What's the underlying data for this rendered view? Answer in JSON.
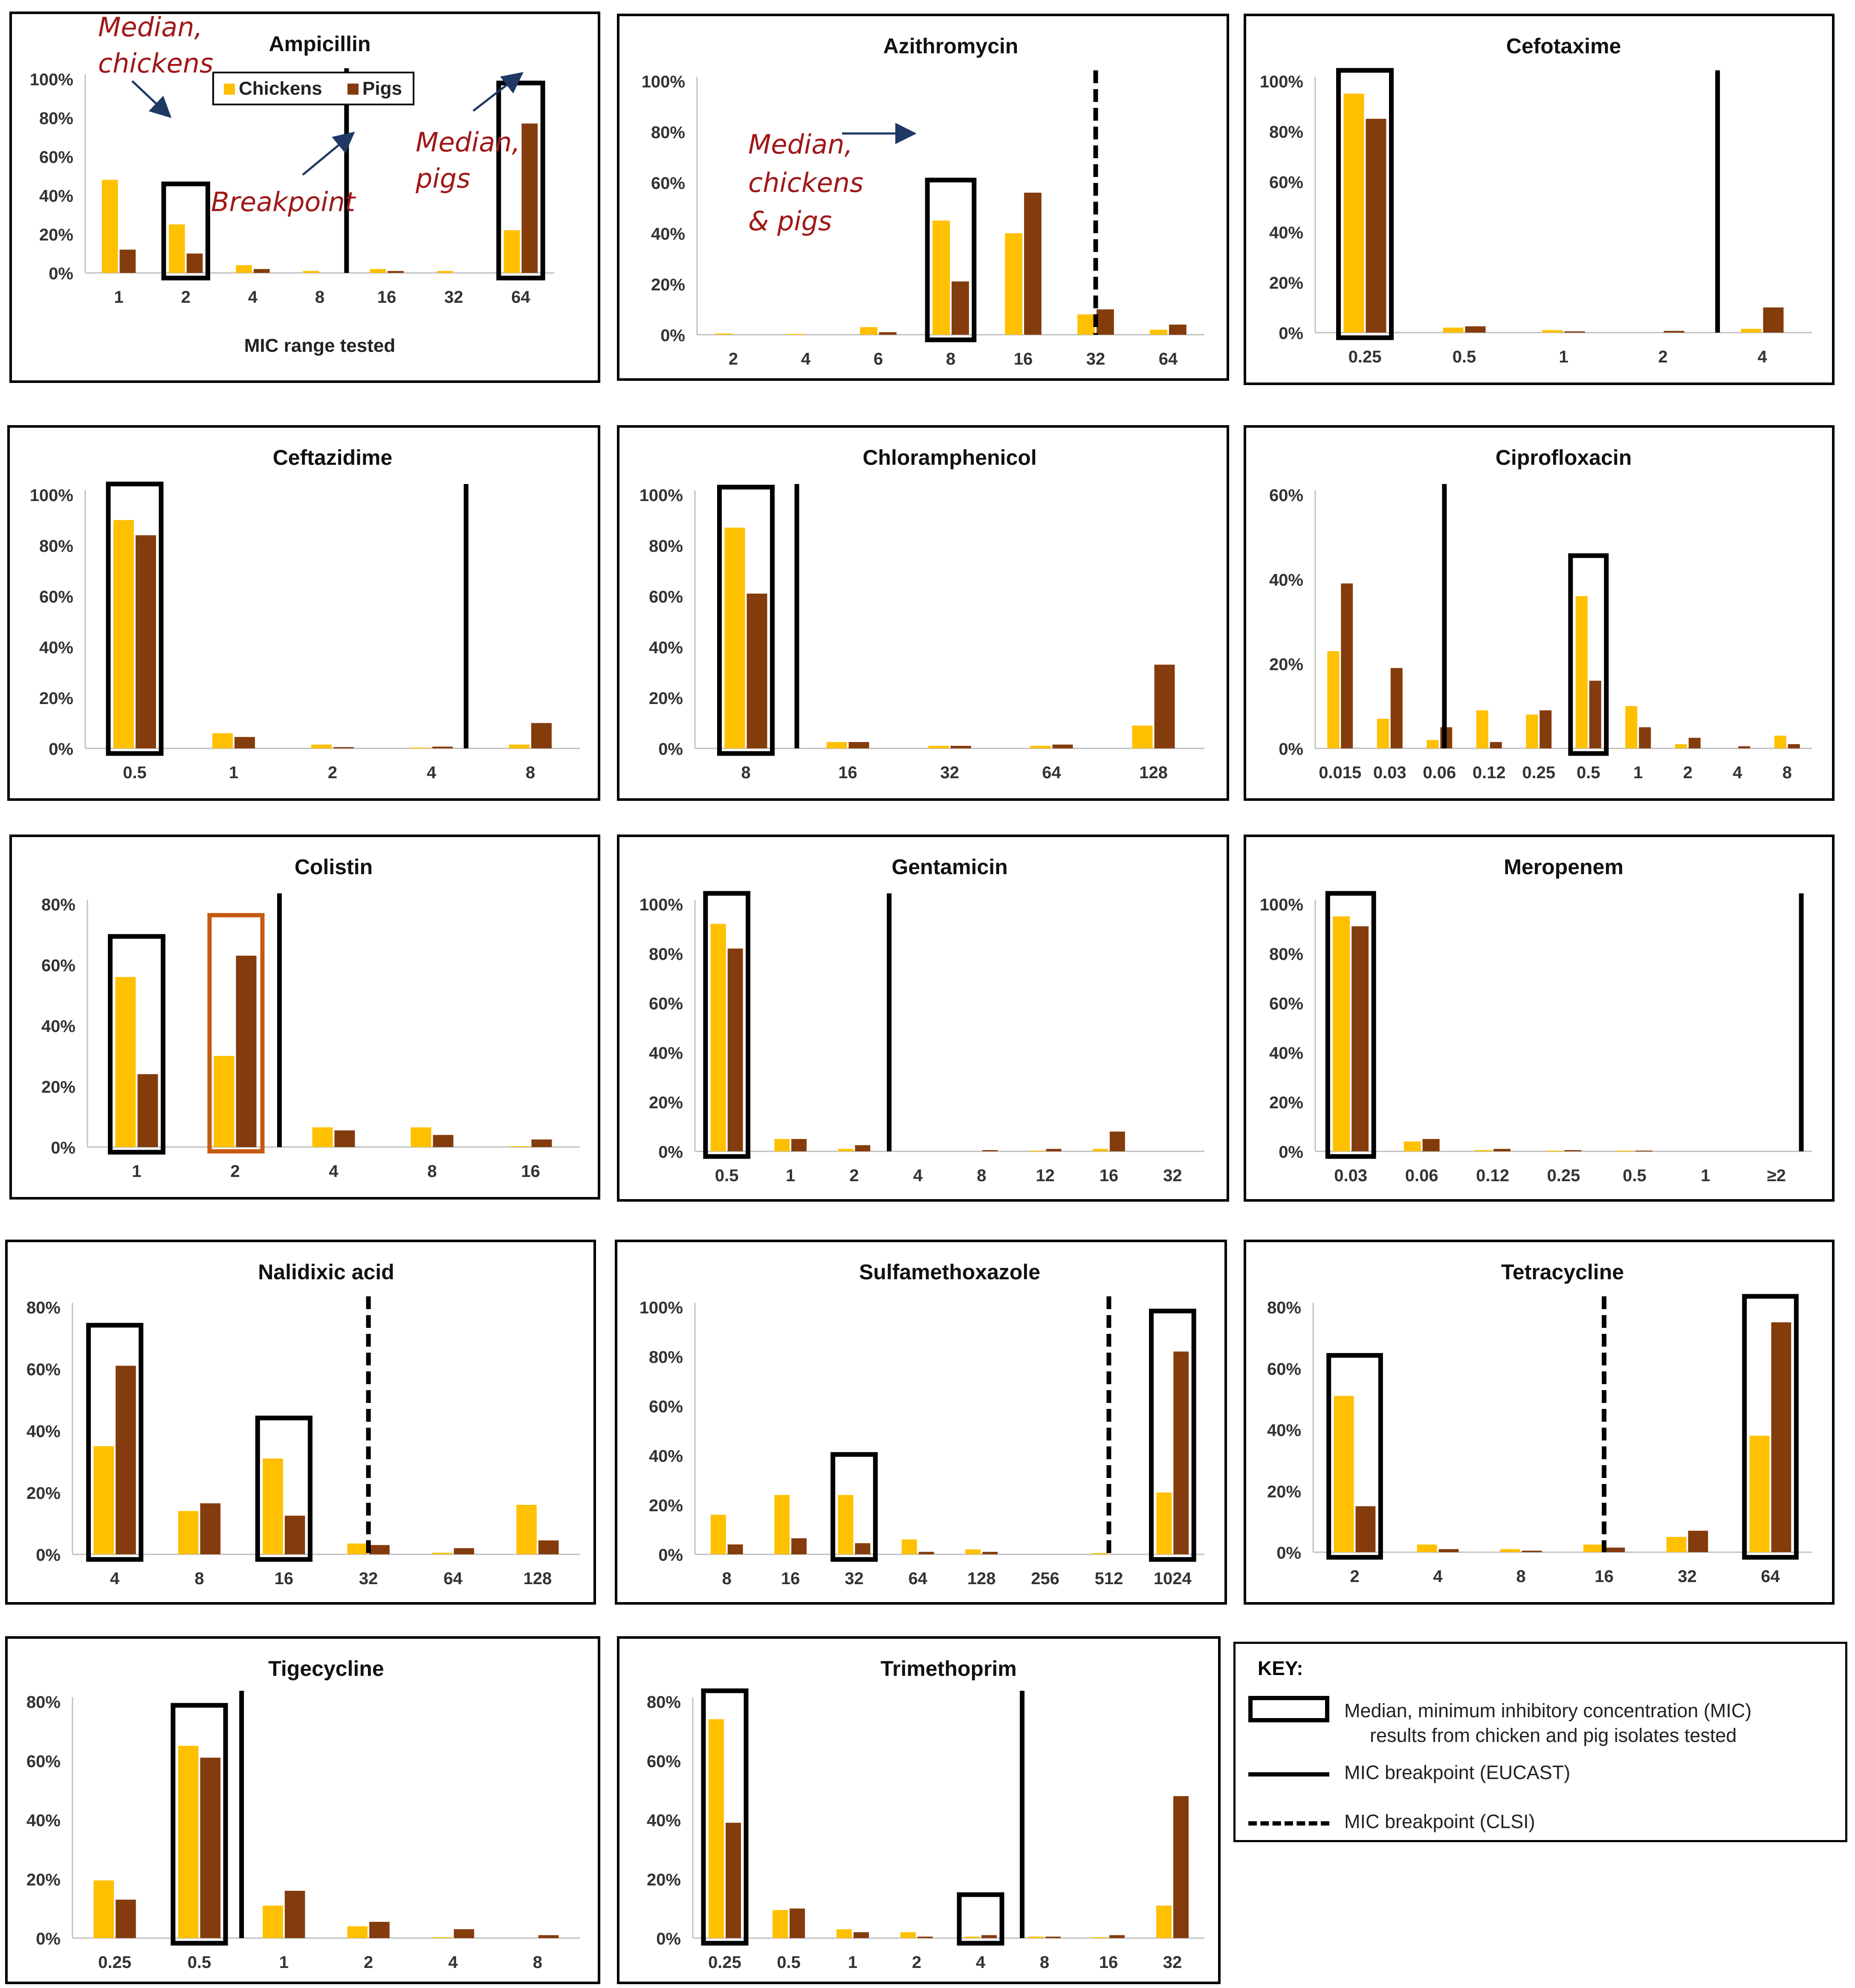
{
  "colors": {
    "chickens": "#FFC000",
    "pigs": "#843C0C",
    "annotation": "#A01818",
    "arrow": "#1F3864",
    "median_box": "#000000",
    "colistin_pig_box": "#C55A11"
  },
  "legend": {
    "chickens": "Chickens",
    "pigs": "Pigs"
  },
  "annotations": {
    "median_chickens_1": "Median,",
    "median_chickens_2": "chickens",
    "breakpoint": "Breakpoint",
    "median_pigs_1": "Median,",
    "median_pigs_2": "pigs",
    "median_both_1": "Median,",
    "median_both_2": "chickens",
    "median_both_3": "& pigs"
  },
  "key": {
    "title": "KEY:",
    "median_line1": "Median, minimum inhibitory concentration (MIC)",
    "median_line2": "results from chicken and pig isolates tested",
    "eucast": "MIC breakpoint (EUCAST)",
    "clsi": "MIC breakpoint (CLSI)"
  },
  "chart_data": [
    {
      "type": "bar",
      "title": "Ampicillin",
      "xlabel": "MIC range tested",
      "categories": [
        "1",
        "2",
        "4",
        "8",
        "16",
        "32",
        "64"
      ],
      "series": [
        {
          "name": "Chickens",
          "values": [
            48,
            25,
            4,
            1,
            2,
            1,
            22
          ]
        },
        {
          "name": "Pigs",
          "values": [
            12,
            10,
            2,
            0,
            1,
            0,
            77
          ]
        }
      ],
      "ylim": [
        0,
        100
      ],
      "yticks": [
        0,
        20,
        40,
        60,
        80,
        100
      ],
      "median_boxes": [
        1,
        6
      ],
      "breakpoints": [
        {
          "after": 3.4,
          "style": "solid"
        }
      ]
    },
    {
      "type": "bar",
      "title": "Azithromycin",
      "xlabel": "",
      "categories": [
        "2",
        "4",
        "6",
        "8",
        "16",
        "32",
        "64"
      ],
      "series": [
        {
          "name": "Chickens",
          "values": [
            0.5,
            0.3,
            3,
            45,
            40,
            8,
            2
          ]
        },
        {
          "name": "Pigs",
          "values": [
            0,
            0,
            1,
            21,
            56,
            10,
            4
          ]
        }
      ],
      "ylim": [
        0,
        100
      ],
      "yticks": [
        0,
        20,
        40,
        60,
        80,
        100
      ],
      "median_boxes": [
        3
      ],
      "breakpoints": [
        {
          "after": 5.0,
          "style": "dashed"
        }
      ]
    },
    {
      "type": "bar",
      "title": "Cefotaxime",
      "xlabel": "",
      "categories": [
        "0.25",
        "0.5",
        "1",
        "2",
        "4"
      ],
      "series": [
        {
          "name": "Chickens",
          "values": [
            95,
            2,
            1,
            0,
            1.5
          ]
        },
        {
          "name": "Pigs",
          "values": [
            85,
            2.5,
            0.5,
            0.7,
            10
          ]
        }
      ],
      "ylim": [
        0,
        100
      ],
      "yticks": [
        0,
        20,
        40,
        60,
        80,
        100
      ],
      "median_boxes": [
        0
      ],
      "breakpoints": [
        {
          "after": 3.55,
          "style": "solid"
        }
      ]
    },
    {
      "type": "bar",
      "title": "Ceftazidime",
      "xlabel": "",
      "categories": [
        "0.5",
        "1",
        "2",
        "4",
        "8"
      ],
      "series": [
        {
          "name": "Chickens",
          "values": [
            90,
            6,
            1.5,
            0.3,
            1.5
          ]
        },
        {
          "name": "Pigs",
          "values": [
            84,
            4.5,
            0.5,
            0.7,
            10
          ]
        }
      ],
      "ylim": [
        0,
        100
      ],
      "yticks": [
        0,
        20,
        40,
        60,
        80,
        100
      ],
      "median_boxes": [
        0
      ],
      "breakpoints": [
        {
          "after": 3.35,
          "style": "solid"
        }
      ]
    },
    {
      "type": "bar",
      "title": "Chloramphenicol",
      "xlabel": "",
      "categories": [
        "8",
        "16",
        "32",
        "64",
        "128"
      ],
      "series": [
        {
          "name": "Chickens",
          "values": [
            87,
            2.5,
            1,
            1,
            9
          ]
        },
        {
          "name": "Pigs",
          "values": [
            61,
            2.5,
            1,
            1.5,
            33
          ]
        }
      ],
      "ylim": [
        0,
        100
      ],
      "yticks": [
        0,
        20,
        40,
        60,
        80,
        100
      ],
      "median_boxes": [
        0
      ],
      "breakpoints": [
        {
          "after": 0.5,
          "style": "solid"
        }
      ]
    },
    {
      "type": "bar",
      "title": "Ciprofloxacin",
      "xlabel": "",
      "categories": [
        "0.015",
        "0.03",
        "0.06",
        "0.12",
        "0.25",
        "0.5",
        "1",
        "2",
        "4",
        "8"
      ],
      "series": [
        {
          "name": "Chickens",
          "values": [
            23,
            7,
            2,
            9,
            8,
            36,
            10,
            1,
            0,
            3
          ]
        },
        {
          "name": "Pigs",
          "values": [
            39,
            19,
            5,
            1.5,
            9,
            16,
            5,
            2.5,
            0.5,
            1
          ]
        }
      ],
      "ylim": [
        0,
        60
      ],
      "yticks": [
        0,
        20,
        40,
        60
      ],
      "median_boxes": [
        5
      ],
      "breakpoints": [
        {
          "after": 2.1,
          "style": "solid"
        }
      ]
    },
    {
      "type": "bar",
      "title": "Colistin",
      "xlabel": "",
      "categories": [
        "1",
        "2",
        "4",
        "8",
        "16"
      ],
      "series": [
        {
          "name": "Chickens",
          "values": [
            56,
            30,
            6.5,
            6.5,
            0.3
          ]
        },
        {
          "name": "Pigs",
          "values": [
            24,
            63,
            5.5,
            4,
            2.5
          ]
        }
      ],
      "ylim": [
        0,
        80
      ],
      "yticks": [
        0,
        20,
        40,
        60,
        80
      ],
      "median_boxes": [
        0
      ],
      "pig_median_box": 1,
      "breakpoints": [
        {
          "after": 1.45,
          "style": "solid"
        }
      ]
    },
    {
      "type": "bar",
      "title": "Gentamicin",
      "xlabel": "",
      "categories": [
        "0.5",
        "1",
        "2",
        "4",
        "8",
        "12",
        "16",
        "32"
      ],
      "series": [
        {
          "name": "Chickens",
          "values": [
            92,
            5,
            1,
            0,
            0,
            0.3,
            1,
            0
          ]
        },
        {
          "name": "Pigs",
          "values": [
            82,
            5,
            2.5,
            0,
            0.5,
            1,
            8,
            0
          ]
        }
      ],
      "ylim": [
        0,
        100
      ],
      "yticks": [
        0,
        20,
        40,
        60,
        80,
        100
      ],
      "median_boxes": [
        0
      ],
      "breakpoints": [
        {
          "after": 2.55,
          "style": "solid"
        }
      ]
    },
    {
      "type": "bar",
      "title": "Meropenem",
      "xlabel": "",
      "categories": [
        "0.03",
        "0.06",
        "0.12",
        "0.25",
        "0.5",
        "1",
        "≥2"
      ],
      "series": [
        {
          "name": "Chickens",
          "values": [
            95,
            4,
            0.5,
            0.3,
            0.3,
            0,
            0
          ]
        },
        {
          "name": "Pigs",
          "values": [
            91,
            5,
            1,
            0.5,
            0.3,
            0,
            0
          ]
        }
      ],
      "ylim": [
        0,
        100
      ],
      "yticks": [
        0,
        20,
        40,
        60,
        80,
        100
      ],
      "median_boxes": [
        0
      ],
      "breakpoints": [
        {
          "after": 6.35,
          "style": "solid"
        }
      ]
    },
    {
      "type": "bar",
      "title": "Nalidixic acid",
      "xlabel": "",
      "categories": [
        "4",
        "8",
        "16",
        "32",
        "64",
        "128"
      ],
      "series": [
        {
          "name": "Chickens",
          "values": [
            35,
            14,
            31,
            3.5,
            0.5,
            16
          ]
        },
        {
          "name": "Pigs",
          "values": [
            61,
            16.5,
            12.5,
            3,
            2,
            4.5
          ]
        }
      ],
      "ylim": [
        0,
        80
      ],
      "yticks": [
        0,
        20,
        40,
        60,
        80
      ],
      "median_boxes": [
        0,
        2
      ],
      "breakpoints": [
        {
          "after": 3.0,
          "style": "dashed"
        }
      ]
    },
    {
      "type": "bar",
      "title": "Sulfamethoxazole",
      "xlabel": "",
      "categories": [
        "8",
        "16",
        "32",
        "64",
        "128",
        "256",
        "512",
        "1024"
      ],
      "series": [
        {
          "name": "Chickens",
          "values": [
            16,
            24,
            24,
            6,
            2,
            0,
            0.5,
            25
          ]
        },
        {
          "name": "Pigs",
          "values": [
            4,
            6.5,
            4.5,
            1,
            1,
            0,
            0,
            82
          ]
        }
      ],
      "ylim": [
        0,
        100
      ],
      "yticks": [
        0,
        20,
        40,
        60,
        80,
        100
      ],
      "median_boxes": [
        2,
        7
      ],
      "breakpoints": [
        {
          "after": 6.0,
          "style": "dashed"
        }
      ]
    },
    {
      "type": "bar",
      "title": "Tetracycline",
      "xlabel": "",
      "categories": [
        "2",
        "4",
        "8",
        "16",
        "32",
        "64"
      ],
      "series": [
        {
          "name": "Chickens",
          "values": [
            51,
            2.5,
            1,
            2.5,
            5,
            38
          ]
        },
        {
          "name": "Pigs",
          "values": [
            15,
            1,
            0.5,
            1.5,
            7,
            75
          ]
        }
      ],
      "ylim": [
        0,
        80
      ],
      "yticks": [
        0,
        20,
        40,
        60,
        80
      ],
      "median_boxes": [
        0,
        5
      ],
      "breakpoints": [
        {
          "after": 3.0,
          "style": "dashed"
        }
      ]
    },
    {
      "type": "bar",
      "title": "Tigecycline",
      "xlabel": "",
      "categories": [
        "0.25",
        "0.5",
        "1",
        "2",
        "4",
        "8"
      ],
      "series": [
        {
          "name": "Chickens",
          "values": [
            19.5,
            65,
            11,
            4,
            0.3,
            0
          ]
        },
        {
          "name": "Pigs",
          "values": [
            13,
            61,
            16,
            5.5,
            3,
            1
          ]
        }
      ],
      "ylim": [
        0,
        80
      ],
      "yticks": [
        0,
        20,
        40,
        60,
        80
      ],
      "median_boxes": [
        1
      ],
      "breakpoints": [
        {
          "after": 1.5,
          "style": "solid"
        }
      ]
    },
    {
      "type": "bar",
      "title": "Trimethoprim",
      "xlabel": "",
      "categories": [
        "0.25",
        "0.5",
        "1",
        "2",
        "4",
        "8",
        "16",
        "32"
      ],
      "series": [
        {
          "name": "Chickens",
          "values": [
            74,
            9.5,
            3,
            2,
            0.5,
            0.5,
            0.3,
            11
          ]
        },
        {
          "name": "Pigs",
          "values": [
            39,
            10,
            2,
            0.5,
            1,
            0.5,
            1,
            48
          ]
        }
      ],
      "ylim": [
        0,
        80
      ],
      "yticks": [
        0,
        20,
        40,
        60,
        80
      ],
      "median_boxes": [
        0,
        4
      ],
      "breakpoints": [
        {
          "after": 4.65,
          "style": "solid"
        }
      ]
    }
  ]
}
